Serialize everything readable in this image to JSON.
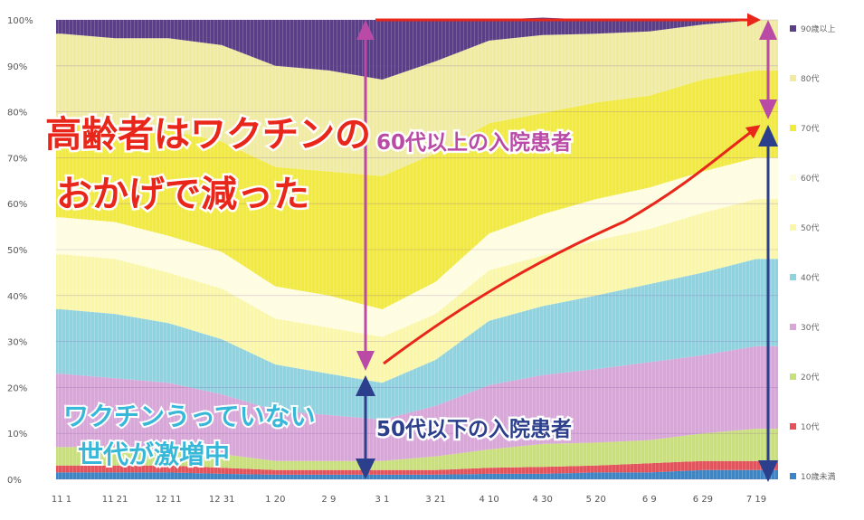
{
  "chart_data": {
    "type": "area",
    "stacked": true,
    "normalized_percent": true,
    "x_ticks": [
      "11 1",
      "11 21",
      "12 11",
      "12 31",
      "1 20",
      "2 9",
      "3 1",
      "3 21",
      "4 10",
      "4 30",
      "5 20",
      "6 9",
      "6 29",
      "7 19"
    ],
    "y_ticks": [
      "0%",
      "10%",
      "20%",
      "30%",
      "40%",
      "50%",
      "60%",
      "70%",
      "80%",
      "90%",
      "100%"
    ],
    "ylim": [
      0,
      100
    ],
    "grid": true,
    "legend_position": "right",
    "x": [
      "11 1",
      "11 21",
      "12 11",
      "12 31",
      "1 20",
      "2 9",
      "3 1",
      "3 21",
      "4 10",
      "4 30",
      "5 20",
      "6 9",
      "6 29",
      "7 19"
    ],
    "series": [
      {
        "name": "10歳未満",
        "color": "#3a86c8",
        "values": [
          1.5,
          1.5,
          1.5,
          1.2,
          1.0,
          1.0,
          1.0,
          1.0,
          1.2,
          1.2,
          1.5,
          1.5,
          2.0,
          2.0
        ]
      },
      {
        "name": "10代",
        "color": "#e8515a",
        "values": [
          1.5,
          1.5,
          1.5,
          1.3,
          1.0,
          1.0,
          1.0,
          1.0,
          1.3,
          1.5,
          1.5,
          2.0,
          2.0,
          2.0
        ]
      },
      {
        "name": "20代",
        "color": "#c9e07a",
        "values": [
          4,
          4,
          3,
          3,
          2,
          2,
          2,
          3,
          4,
          5,
          5,
          5,
          6,
          7
        ]
      },
      {
        "name": "30代",
        "color": "#d9a6d9",
        "values": [
          16,
          15,
          15,
          13,
          11,
          10,
          9,
          11,
          14,
          15,
          16,
          17,
          17,
          18
        ]
      },
      {
        "name": "40代",
        "color": "#8fd3e0",
        "values": [
          14,
          14,
          13,
          12,
          10,
          9,
          8,
          10,
          14,
          15,
          16,
          17,
          18,
          19
        ]
      },
      {
        "name": "50代",
        "color": "#fbf7a8",
        "values": [
          12,
          12,
          11,
          11,
          10,
          10,
          10,
          10,
          11,
          11,
          12,
          12,
          13,
          13
        ]
      },
      {
        "name": "60代",
        "color": "#fffde0",
        "values": [
          8,
          8,
          8,
          8,
          7,
          7,
          6,
          7,
          8,
          9,
          9,
          9,
          9,
          9
        ]
      },
      {
        "name": "70代",
        "color": "#f2ea3c",
        "values": [
          21,
          21,
          23,
          24,
          26,
          27,
          29,
          28,
          24,
          22,
          21,
          20,
          20,
          19
        ]
      },
      {
        "name": "80代",
        "color": "#f0eba0",
        "values": [
          19,
          19,
          20,
          21,
          22,
          22,
          21,
          20,
          18,
          17,
          15,
          14,
          12,
          11
        ]
      },
      {
        "name": "90歳以上",
        "color": "#5b3e8a",
        "values": [
          3,
          4,
          4,
          5.5,
          10,
          11,
          13,
          9,
          4.5,
          3.8,
          3,
          2.5,
          1,
          0
        ]
      }
    ],
    "legend_labels": [
      "90歳以上",
      "80代",
      "70代",
      "60代",
      "50代",
      "40代",
      "30代",
      "20代",
      "10代",
      "10歳未満"
    ],
    "annotations": {
      "elderly_note_line1": "高齢者はワクチンの",
      "elderly_note_line2": "おかげで減った",
      "upper_arrow_label": "60代以上の入院患者",
      "young_note_line1": "ワクチンうっていない",
      "young_note_line2": "世代が激増中",
      "lower_arrow_label": "50代以下の入院患者"
    },
    "colors": {
      "pen_red": "#e8261a",
      "arrow_purple": "#b94aa5",
      "arrow_navy": "#2c3f8c",
      "pen_cyan": "#38b8d8"
    }
  }
}
